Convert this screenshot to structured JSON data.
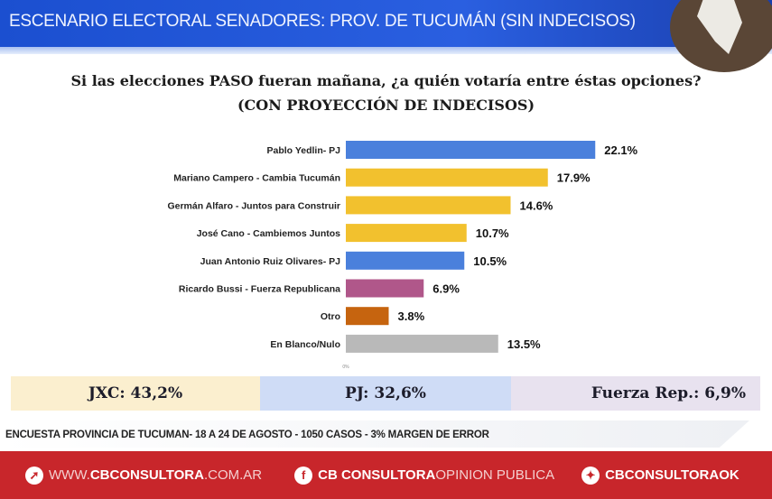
{
  "header": {
    "title": "ESCENARIO ELECTORAL SENADORES: PROV. DE TUCUMÁN (SIN INDECISOS)"
  },
  "chart_data": {
    "type": "bar",
    "orientation": "horizontal",
    "title": "Si las elecciones PASO fueran mañana, ¿a quién votaría entre éstas opciones?",
    "subtitle": "(CON PROYECCIÓN DE INDECISOS)",
    "categories": [
      "Pablo Yedlin- PJ",
      "Mariano Campero - Cambia Tucumán",
      "Germán Alfaro - Juntos para Construir",
      "José Cano - Cambiemos Juntos",
      "Juan Antonio Ruiz Olivares- PJ",
      "Ricardo Bussi - Fuerza Republicana",
      "Otro",
      "En Blanco/Nulo"
    ],
    "values": [
      22.1,
      17.9,
      14.6,
      10.7,
      10.5,
      6.9,
      3.8,
      13.5
    ],
    "data_labels": [
      "22.1%",
      "17.9%",
      "14.6%",
      "10.7%",
      "10.5%",
      "6.9%",
      "3.8%",
      "13.5%"
    ],
    "colors": [
      "#4a80dc",
      "#f2c12e",
      "#f2c12e",
      "#f2c12e",
      "#4a80dc",
      "#b0578a",
      "#c6640f",
      "#b9b9b9"
    ],
    "x_tick": "0%",
    "xlim": [
      0,
      30
    ],
    "grid": false
  },
  "summary": [
    {
      "label": "JXC: 43,2%",
      "color": "#fbefcf"
    },
    {
      "label": "PJ: 32,6%",
      "color": "#cfdcf6"
    },
    {
      "label": "Fuerza Rep.: 6,9%",
      "color": "#e8e2ef"
    }
  ],
  "footnote": "ENCUESTA PROVINCIA DE TUCUMAN- 18 A 24 DE AGOSTO - 1050 CASOS - 3% MARGEN DE ERROR",
  "footer": {
    "web_prefix": "WWW.",
    "web_bold": "CBCONSULTORA",
    "web_suffix": ".COM.AR",
    "fb_bold": "CB CONSULTORA",
    "fb_light": " OPINION PUBLICA",
    "tw_bold": "CBCONSULTORAOK"
  }
}
